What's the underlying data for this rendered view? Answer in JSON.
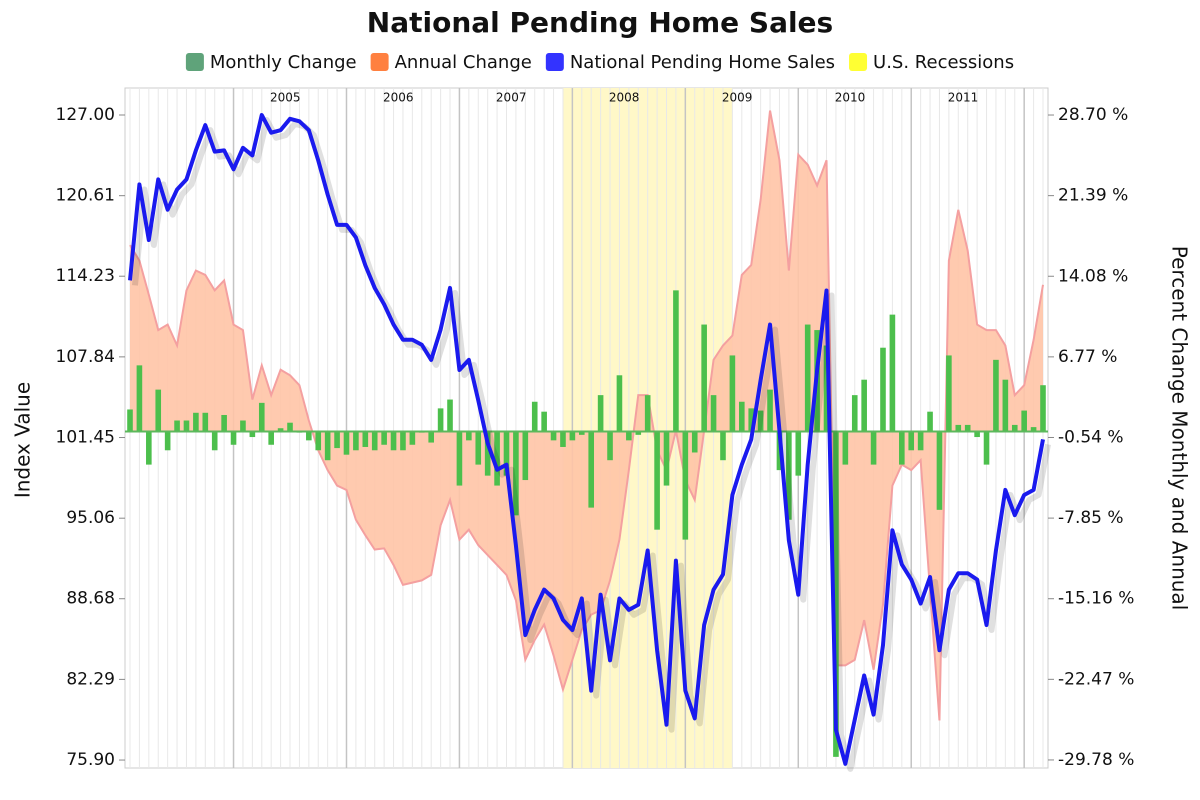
{
  "chart_data": {
    "type": "combo",
    "title": "National Pending Home Sales",
    "y_label": "Index Value",
    "y2_label": "Percent Change Monthly and Annual",
    "categories": [
      null,
      null,
      null,
      null,
      null,
      null,
      null,
      null,
      null,
      null,
      null,
      null,
      null,
      null,
      null,
      null,
      null,
      "2005",
      null,
      null,
      null,
      null,
      null,
      null,
      null,
      null,
      null,
      null,
      null,
      "2006",
      null,
      null,
      null,
      null,
      null,
      null,
      null,
      null,
      null,
      null,
      null,
      "2007",
      null,
      null,
      null,
      null,
      null,
      null,
      null,
      null,
      null,
      null,
      null,
      "2008",
      null,
      null,
      null,
      null,
      null,
      null,
      null,
      null,
      null,
      null,
      null,
      "2009",
      null,
      null,
      null,
      null,
      null,
      null,
      null,
      null,
      null,
      null,
      null,
      "2010",
      null,
      null,
      null,
      null,
      null,
      null,
      null,
      null,
      null,
      null,
      null,
      "2011",
      null,
      null,
      null,
      null,
      null,
      null,
      null,
      null
    ],
    "recession": {
      "name": "U.S. Recessions",
      "color": "#fff8c8",
      "legend_color": "#ffff33",
      "start": 46,
      "end": 64
    },
    "series": [
      {
        "name": "Monthly Change",
        "type": "bar",
        "axis": "y2",
        "color": "#4cbf4c",
        "legend_color": "#5fa37a",
        "values": [
          2.0,
          6.0,
          -3.0,
          3.8,
          -1.7,
          1.0,
          1.0,
          1.7,
          1.7,
          -1.7,
          1.5,
          -1.2,
          1.0,
          -0.5,
          2.6,
          -1.2,
          0.3,
          0.8,
          -0.1,
          -0.8,
          -1.7,
          -2.6,
          -1.5,
          -2.1,
          -1.7,
          -1.4,
          -1.7,
          -1.2,
          -1.7,
          -1.7,
          -1.2,
          -0.1,
          -1.0,
          2.1,
          2.9,
          -4.9,
          -0.8,
          -3.0,
          -4.0,
          -4.9,
          -4.0,
          -7.6,
          -4.4,
          2.7,
          1.8,
          -0.8,
          -1.4,
          -0.8,
          -0.3,
          -6.9,
          3.3,
          -2.6,
          5.1,
          -0.8,
          -0.3,
          3.3,
          -8.9,
          -4.9,
          12.8,
          -9.8,
          -1.9,
          9.7,
          3.3,
          -2.6,
          6.9,
          2.7,
          2.1,
          1.9,
          3.8,
          -3.5,
          -8.0,
          -4.0,
          9.7,
          9.2,
          7.8,
          -29.5,
          -3.0,
          3.3,
          4.7,
          -3.0,
          7.6,
          10.6,
          -3.0,
          -1.7,
          -1.7,
          1.8,
          -7.1,
          6.9,
          0.6,
          0.6,
          -0.5,
          -3.0,
          6.5,
          4.7,
          0.6,
          1.9,
          0.4,
          4.2
        ]
      },
      {
        "name": "Annual Change",
        "type": "area",
        "axis": "y2",
        "color": "#ffc4a6",
        "stroke": "#f4a0a0",
        "legend_color": "#ff8040",
        "values": [
          16.9,
          15.5,
          12.4,
          9.2,
          9.7,
          7.8,
          12.8,
          14.6,
          14.2,
          12.8,
          13.7,
          9.7,
          9.2,
          2.9,
          6.0,
          3.3,
          5.6,
          5.1,
          4.2,
          1.0,
          -1.7,
          -3.5,
          -4.9,
          -5.3,
          -8.0,
          -9.4,
          -10.7,
          -10.6,
          -12.1,
          -13.9,
          -13.7,
          -13.5,
          -13.0,
          -8.5,
          -6.2,
          -9.8,
          -8.9,
          -10.3,
          -11.2,
          -12.1,
          -13.0,
          -15.3,
          -20.7,
          -18.9,
          -17.5,
          -20.3,
          -23.4,
          -20.7,
          -18.0,
          -16.6,
          -16.2,
          -13.5,
          -9.8,
          -3.5,
          3.3,
          3.3,
          -1.7,
          -3.5,
          0.1,
          -4.4,
          -6.2,
          0.1,
          6.5,
          7.8,
          8.7,
          14.2,
          15.1,
          21.0,
          29.1,
          24.6,
          14.6,
          25.1,
          24.2,
          22.3,
          24.6,
          -21.2,
          -21.2,
          -20.7,
          -17.1,
          -21.6,
          -15.7,
          -4.9,
          -3.0,
          -3.5,
          -2.6,
          -14.4,
          -26.2,
          15.5,
          20.1,
          16.4,
          9.7,
          9.2,
          9.2,
          7.8,
          3.3,
          4.2,
          8.3,
          13.3
        ]
      },
      {
        "name": "National Pending Home Sales",
        "type": "line",
        "axis": "y",
        "color": "#1a1aee",
        "legend_color": "#3333ff",
        "values": [
          113.9,
          121.5,
          117.1,
          121.9,
          119.5,
          121.1,
          121.9,
          124.2,
          126.2,
          124.1,
          124.2,
          122.7,
          124.4,
          123.8,
          127.0,
          125.6,
          125.8,
          126.7,
          126.5,
          125.8,
          123.4,
          120.7,
          118.3,
          118.3,
          117.3,
          115.1,
          113.3,
          112.0,
          110.4,
          109.2,
          109.2,
          108.8,
          107.6,
          110.0,
          113.3,
          106.8,
          107.6,
          104.4,
          101.0,
          98.9,
          99.3,
          92.9,
          85.8,
          87.8,
          89.4,
          88.7,
          87.0,
          86.2,
          88.7,
          81.4,
          89.0,
          83.8,
          88.7,
          87.8,
          88.2,
          92.5,
          84.6,
          78.7,
          91.7,
          81.4,
          79.2,
          86.6,
          89.4,
          90.6,
          96.9,
          99.3,
          101.3,
          106.0,
          110.4,
          102.0,
          93.3,
          89.0,
          99.3,
          106.8,
          113.1,
          78.3,
          75.6,
          79.1,
          82.6,
          79.5,
          85.0,
          94.1,
          91.4,
          90.2,
          88.3,
          90.4,
          84.6,
          89.4,
          90.7,
          90.7,
          90.2,
          86.6,
          92.5,
          97.3,
          95.3,
          96.9,
          97.3,
          101.3
        ]
      }
    ],
    "ylim": [
      75.27,
      129.14
    ],
    "yticks": [
      {
        "value": 75.9,
        "label": "75.90"
      },
      82.29,
      88.68,
      95.06,
      101.45,
      107.84,
      114.23,
      120.61,
      {
        "value": 127,
        "label": "127.00"
      }
    ],
    "y2lim": [
      -30.51,
      31.15
    ],
    "y2ticks": [
      {
        "value": -29.78,
        "label": "-29.78 %"
      },
      {
        "value": -22.47,
        "label": "-22.47 %"
      },
      {
        "value": -15.16,
        "label": "-15.16 %"
      },
      {
        "value": -7.85,
        "label": "-7.85 %"
      },
      {
        "value": -0.54,
        "label": "-0.54 %"
      },
      {
        "value": 6.77,
        "label": "6.77 %"
      },
      {
        "value": 14.08,
        "label": "14.08 %"
      },
      {
        "value": 21.39,
        "label": "21.39 %"
      },
      {
        "value": 28.7,
        "label": "28.70 %"
      }
    ],
    "grid": true
  }
}
